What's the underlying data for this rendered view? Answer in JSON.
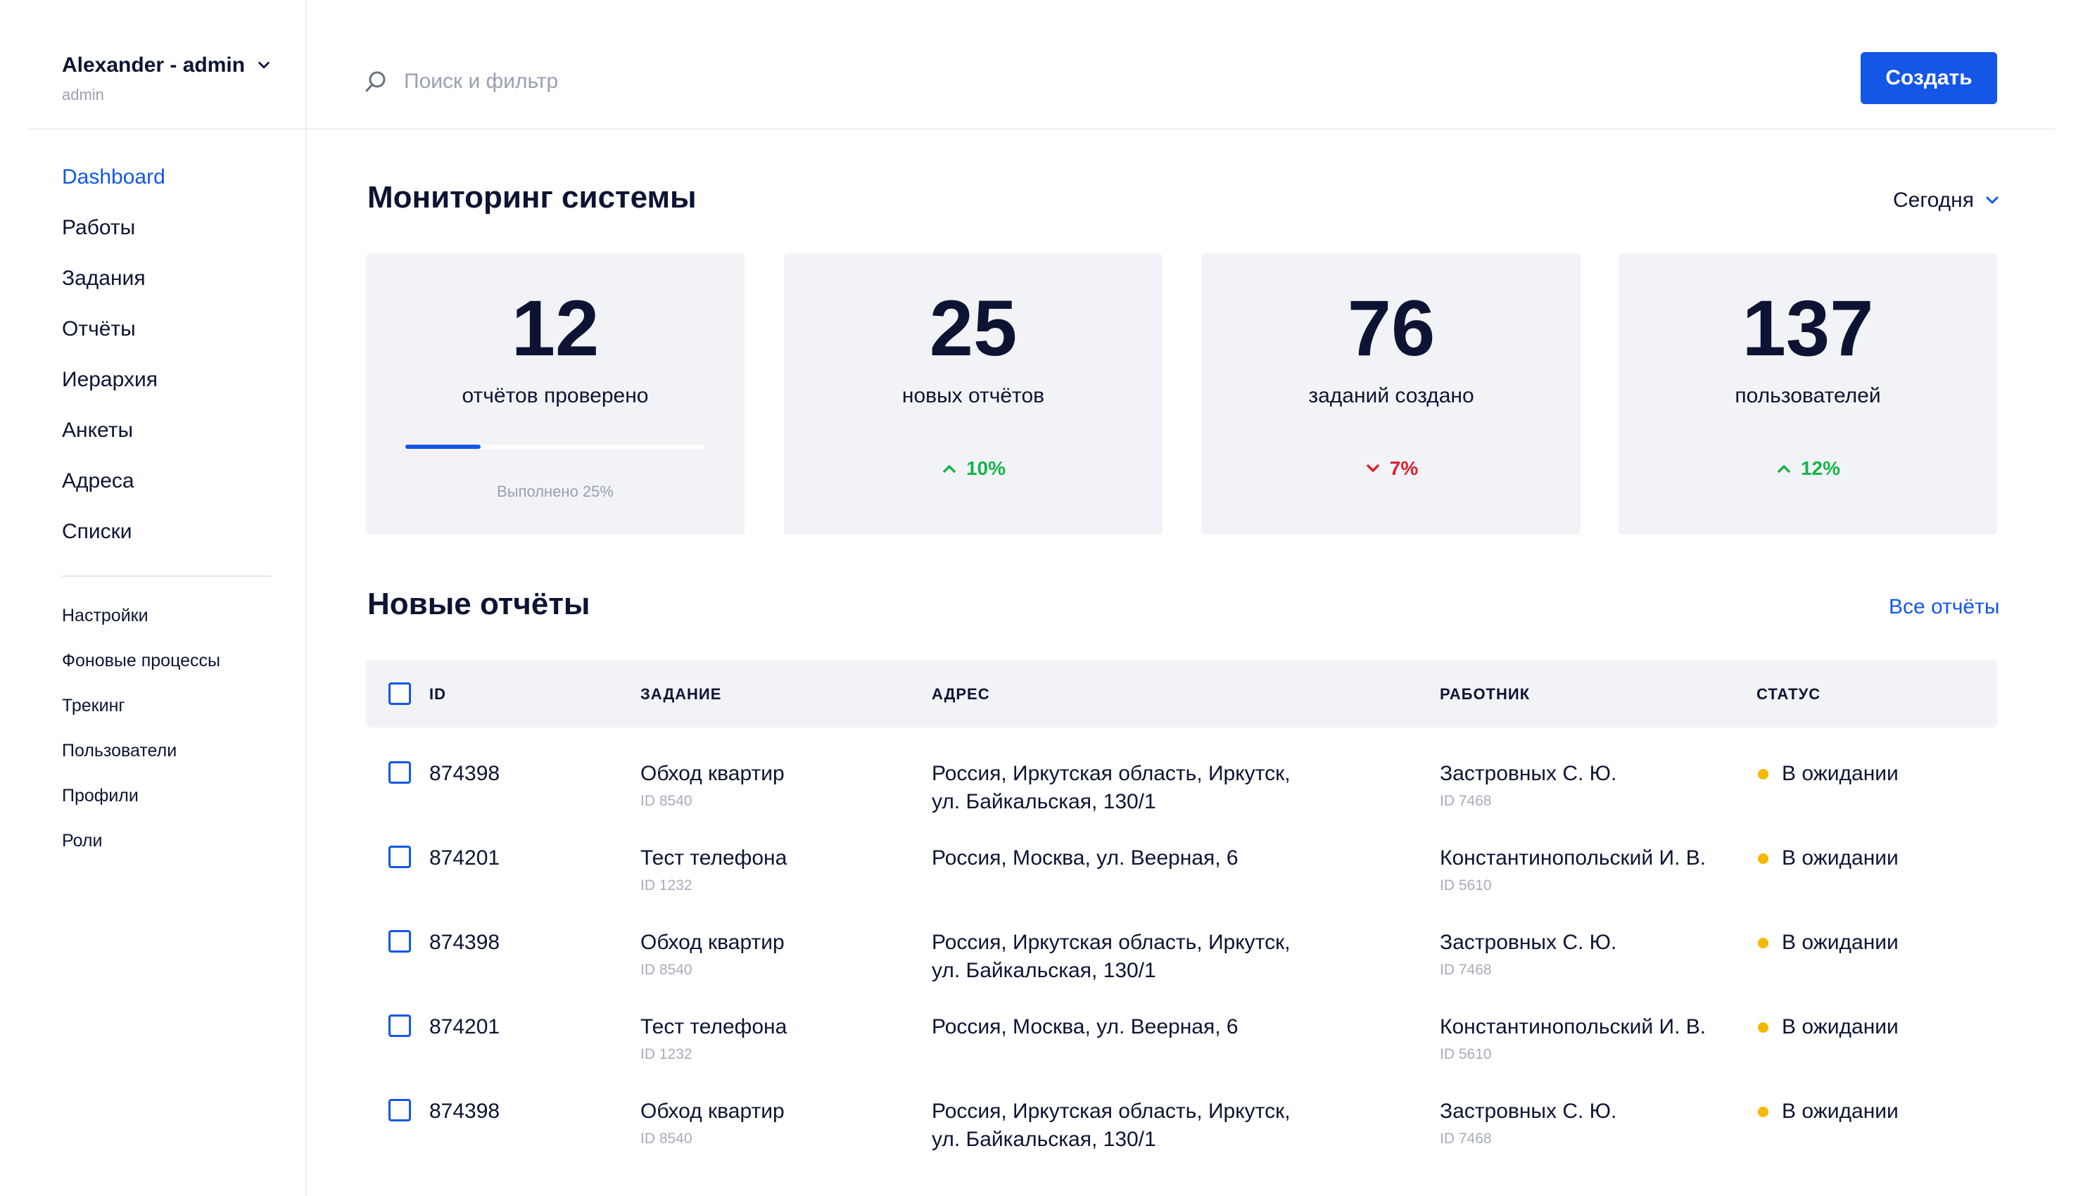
{
  "user": {
    "name": "Alexander - admin",
    "role": "admin"
  },
  "nav": {
    "main": [
      "Dashboard",
      "Работы",
      "Задания",
      "Отчёты",
      "Иерархия",
      "Анкеты",
      "Адреса",
      "Списки"
    ],
    "secondary": [
      "Настройки",
      "Фоновые процессы",
      "Трекинг",
      "Пользователи",
      "Профили",
      "Роли"
    ],
    "active": "Dashboard"
  },
  "search": {
    "placeholder": "Поиск и фильтр",
    "value": ""
  },
  "create_label": "Создать",
  "monitoring": {
    "title": "Мониторинг системы",
    "period": "Сегодня",
    "cards": [
      {
        "value": "12",
        "label": "отчётов проверено",
        "progress": 0.25,
        "progress_text": "Выполнено 25%"
      },
      {
        "value": "25",
        "label": "новых отчётов",
        "trend": "10%",
        "direction": "up"
      },
      {
        "value": "76",
        "label": "заданий создано",
        "trend": "7%",
        "direction": "down"
      },
      {
        "value": "137",
        "label": "пользователей",
        "trend": "12%",
        "direction": "up"
      }
    ]
  },
  "reports": {
    "title": "Новые отчёты",
    "all_link": "Все отчёты",
    "columns": [
      "ID",
      "ЗАДАНИЕ",
      "АДРЕС",
      "РАБОТНИК",
      "СТАТУС"
    ],
    "rows": [
      {
        "id": "874398",
        "task": "Обход квартир",
        "task_id": "ID 8540",
        "address": [
          "Россия, Иркутская область, Иркутск,",
          "ул. Байкальская, 130/1"
        ],
        "worker": "Застровных С. Ю.",
        "worker_id": "ID 7468",
        "status": "В ожидании"
      },
      {
        "id": "874201",
        "task": "Тест телефона",
        "task_id": "ID 1232",
        "address": [
          "Россия, Москва, ул. Веерная, 6"
        ],
        "worker": "Константинопольский И. В.",
        "worker_id": "ID 5610",
        "status": "В ожидании"
      },
      {
        "id": "874398",
        "task": "Обход квартир",
        "task_id": "ID 8540",
        "address": [
          "Россия, Иркутская область, Иркутск,",
          "ул. Байкальская, 130/1"
        ],
        "worker": "Застровных С. Ю.",
        "worker_id": "ID 7468",
        "status": "В ожидании"
      },
      {
        "id": "874201",
        "task": "Тест телефона",
        "task_id": "ID 1232",
        "address": [
          "Россия, Москва, ул. Веерная, 6"
        ],
        "worker": "Константинопольский И. В.",
        "worker_id": "ID 5610",
        "status": "В ожидании"
      },
      {
        "id": "874398",
        "task": "Обход квартир",
        "task_id": "ID 8540",
        "address": [
          "Россия, Иркутская область, Иркутск,",
          "ул. Байкальская, 130/1"
        ],
        "worker": "Застровных С. Ю.",
        "worker_id": "ID 7468",
        "status": "В ожидании"
      }
    ]
  },
  "colors": {
    "accent": "#1456e6",
    "text": "#0d1433",
    "muted": "#9aa0b0",
    "card_bg": "#f2f3f7",
    "up": "#16b54a",
    "down": "#e21d2e",
    "pending": "#f5b800"
  },
  "icons": {
    "search": "search-icon",
    "user_menu": "chevron-down-icon",
    "trend_up": "chevron-up-icon",
    "trend_down": "chevron-down-icon"
  }
}
